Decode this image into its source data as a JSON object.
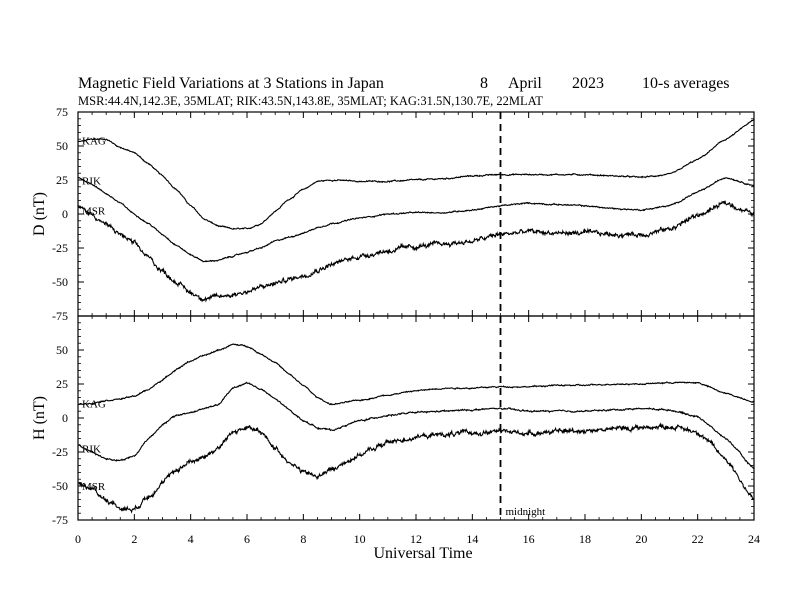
{
  "chart_data": {
    "type": "line",
    "title": "Magnetic Field Variations at 3 Stations in Japan",
    "date": {
      "day": "8",
      "month": "April",
      "year": "2023"
    },
    "averaging": "10-s averages",
    "subtitle": "MSR:44.4N,142.3E, 35MLAT;  RIK:43.5N,143.8E, 35MLAT;  KAG:31.5N,130.7E, 22MLAT",
    "xlabel": "Universal Time",
    "xlim": [
      0,
      24
    ],
    "xticks": [
      "0",
      "2",
      "4",
      "6",
      "8",
      "10",
      "12",
      "14",
      "16",
      "18",
      "20",
      "22",
      "24"
    ],
    "midnight_line": {
      "x": 15,
      "label": "midnight"
    },
    "panels": [
      {
        "ylabel": "D (nT)",
        "ylim": [
          -75,
          75
        ],
        "yticks": [
          "75",
          "50",
          "25",
          "0",
          "-25",
          "-50",
          "-75"
        ],
        "series": [
          {
            "name": "KAG",
            "noise": 0.5,
            "x": [
              0,
              0.5,
              1,
              1.5,
              2,
              2.5,
              3,
              3.5,
              4,
              4.5,
              5,
              5.5,
              6,
              6.5,
              7,
              7.5,
              8,
              8.5,
              9,
              10,
              11,
              12,
              13,
              14,
              15,
              16,
              17,
              18,
              19,
              20,
              21,
              22,
              23,
              24
            ],
            "y": [
              53,
              55,
              55,
              49,
              45,
              37,
              28,
              18,
              6,
              -4,
              -9,
              -11,
              -11,
              -7,
              2,
              11,
              18,
              24,
              25,
              24,
              24,
              25,
              26,
              28,
              29,
              29,
              29,
              29,
              28,
              27,
              29,
              40,
              55,
              69
            ]
          },
          {
            "name": "RIK",
            "noise": 0.5,
            "x": [
              0,
              0.5,
              1,
              1.5,
              2,
              2.5,
              3,
              3.5,
              4,
              4.5,
              5,
              5.5,
              6,
              6.5,
              7,
              7.5,
              8,
              8.5,
              9,
              10,
              11,
              12,
              13,
              14,
              15,
              16,
              17,
              18,
              19,
              20,
              21,
              22,
              23,
              24
            ],
            "y": [
              27,
              22,
              15,
              8,
              0,
              -7,
              -15,
              -23,
              -30,
              -35,
              -34,
              -31,
              -28,
              -25,
              -20,
              -17,
              -14,
              -10,
              -7,
              -3,
              0,
              1,
              1,
              3,
              6,
              8,
              7,
              6,
              4,
              3,
              6,
              16,
              27,
              21
            ]
          },
          {
            "name": "MSR",
            "noise": 1.8,
            "x": [
              0,
              0.5,
              1,
              1.5,
              2,
              2.5,
              3,
              3.5,
              4,
              4.5,
              5,
              5.5,
              6,
              6.5,
              7,
              7.5,
              8,
              8.5,
              9,
              10,
              11,
              12,
              13,
              14,
              15,
              16,
              17,
              18,
              19,
              20,
              21,
              22,
              23,
              24
            ],
            "y": [
              5,
              0,
              -8,
              -15,
              -22,
              -32,
              -42,
              -50,
              -58,
              -62,
              -61,
              -59,
              -57,
              -54,
              -51,
              -48,
              -45,
              -41,
              -37,
              -31,
              -27,
              -24,
              -22,
              -20,
              -15,
              -13,
              -14,
              -14,
              -15,
              -15,
              -11,
              -1,
              8,
              0
            ]
          }
        ]
      },
      {
        "ylabel": "H (nT)",
        "ylim": [
          -75,
          75
        ],
        "yticks": [
          "75",
          "50",
          "25",
          "0",
          "-25",
          "-50",
          "-75"
        ],
        "series": [
          {
            "name": "KAG",
            "noise": 0.5,
            "x": [
              0,
              0.5,
              1,
              1.5,
              2,
              2.5,
              3,
              3.5,
              4,
              4.5,
              5,
              5.5,
              6,
              6.5,
              7,
              7.5,
              8,
              8.5,
              9,
              10,
              11,
              12,
              13,
              14,
              15,
              16,
              17,
              18,
              19,
              20,
              21,
              22,
              23,
              24
            ],
            "y": [
              10,
              11,
              13,
              14,
              16,
              21,
              28,
              36,
              42,
              46,
              50,
              54,
              53,
              47,
              41,
              32,
              24,
              15,
              10,
              13,
              17,
              20,
              22,
              22,
              23,
              23,
              24,
              24,
              25,
              25,
              26,
              26,
              18,
              12
            ]
          },
          {
            "name": "RIK",
            "noise": 0.6,
            "x": [
              0,
              0.5,
              1,
              1.5,
              2,
              2.5,
              3,
              3.5,
              4,
              4.5,
              5,
              5.5,
              6,
              6.5,
              7,
              7.5,
              8,
              8.5,
              9,
              10,
              11,
              12,
              13,
              14,
              15,
              16,
              17,
              18,
              19,
              20,
              21,
              22,
              23,
              24
            ],
            "y": [
              -20,
              -25,
              -30,
              -31,
              -28,
              -15,
              -5,
              2,
              4,
              7,
              10,
              22,
              26,
              21,
              14,
              6,
              -2,
              -7,
              -9,
              -2,
              2,
              4,
              5,
              6,
              7,
              5,
              5,
              5,
              6,
              7,
              6,
              1,
              -15,
              -37
            ]
          },
          {
            "name": "MSR",
            "noise": 1.8,
            "x": [
              0,
              0.5,
              1,
              1.5,
              2,
              2.5,
              3,
              3.5,
              4,
              4.5,
              5,
              5.5,
              6,
              6.5,
              7,
              7.5,
              8,
              8.5,
              9,
              10,
              11,
              12,
              13,
              14,
              15,
              16,
              17,
              18,
              19,
              20,
              21,
              22,
              23,
              24
            ],
            "y": [
              -48,
              -52,
              -60,
              -66,
              -67,
              -57,
              -48,
              -38,
              -32,
              -28,
              -22,
              -10,
              -7,
              -11,
              -22,
              -32,
              -40,
              -43,
              -38,
              -27,
              -18,
              -14,
              -12,
              -11,
              -10,
              -11,
              -10,
              -9,
              -8,
              -7,
              -6,
              -10,
              -30,
              -60
            ]
          }
        ]
      }
    ],
    "grid": false
  }
}
